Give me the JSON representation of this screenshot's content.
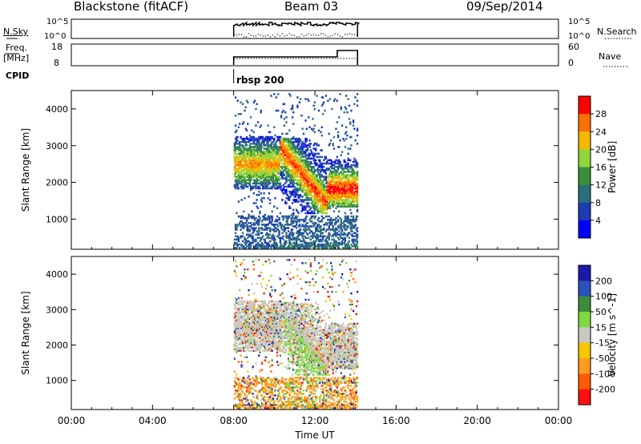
{
  "header": {
    "station": "Blackstone (fitACF)",
    "beam": "Beam 03",
    "date": "09/Sep/2014"
  },
  "status_panels": {
    "nsky_label": "N.Sky",
    "nsearch_label": "N.Search",
    "nsky_ticks": [
      "10^5",
      "10^0"
    ],
    "nsky_right_ticks": [
      "10^5",
      "10^0"
    ],
    "freq_label": "Freq.",
    "freq_unit": "[MHz]",
    "freq_ticks": [
      "18",
      "8"
    ],
    "nave_label": "Nave",
    "nave_ticks": [
      "60",
      "0"
    ],
    "cpid_label": "CPID",
    "cpid_value": "rbsp 200"
  },
  "colors": {
    "power_scale": [
      "#0000ff",
      "#1e3cb4",
      "#2a6e7a",
      "#3a8f3a",
      "#8fd63a",
      "#f5b800",
      "#ff7000",
      "#ff0000"
    ],
    "velocity_scale": [
      "#1a1aaa",
      "#2a52be",
      "#3c8c3c",
      "#80d840",
      "#c8c8c0",
      "#f5c800",
      "#ff9c20",
      "#ff5a00",
      "#ff1010"
    ]
  },
  "chart_data": [
    {
      "type": "heatmap",
      "name_key": "power",
      "ylabel": "Slant Range [km]",
      "xlim": [
        0,
        24
      ],
      "ylim": [
        180,
        4500
      ],
      "yticks": [
        "1000",
        "2000",
        "3000",
        "4000"
      ],
      "ytick_values": [
        1000,
        2000,
        3000,
        4000
      ],
      "colorbar_label": "Power [dB]",
      "colorbar_ticks": [
        "4",
        "8",
        "12",
        "16",
        "20",
        "24",
        "28"
      ],
      "colorbar_range": [
        0,
        32
      ],
      "data_window_hours": [
        8.0,
        14.1
      ],
      "echo_bands": [
        {
          "t_start": 8.0,
          "t_end": 10.3,
          "range_lo": 2000,
          "range_hi": 3050,
          "peak_db": 20
        },
        {
          "t_start": 10.3,
          "t_end": 12.6,
          "range_lo": 1300,
          "range_hi": 3000,
          "peak_db": 24
        },
        {
          "t_start": 12.6,
          "t_end": 14.1,
          "range_lo": 1500,
          "range_hi": 2400,
          "peak_db": 26
        }
      ]
    },
    {
      "type": "heatmap",
      "name_key": "velocity",
      "ylabel": "Slant Range [km]",
      "xlabel": "Time UT",
      "xlim": [
        0,
        24
      ],
      "ylim": [
        180,
        4500
      ],
      "yticks": [
        "1000",
        "2000",
        "3000",
        "4000"
      ],
      "ytick_values": [
        1000,
        2000,
        3000,
        4000
      ],
      "xticks": [
        "00:00",
        "04:00",
        "08:00",
        "12:00",
        "16:00",
        "20:00",
        "00:00"
      ],
      "xtick_values": [
        0,
        4,
        8,
        12,
        16,
        20,
        24
      ],
      "colorbar_label": "Velocity [m s^-1]",
      "colorbar_ticks": [
        "200",
        "100",
        "50",
        "15",
        "-15",
        "-50",
        "-100",
        "-200"
      ],
      "data_window_hours": [
        8.0,
        14.1
      ],
      "dominant_velocity_ms": 0
    }
  ]
}
